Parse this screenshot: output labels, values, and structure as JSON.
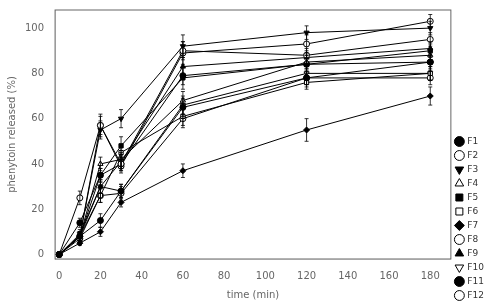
{
  "chart_data": {
    "type": "line",
    "xlabel": "time (min)",
    "ylabel": "phenytoin released (%)",
    "x": [
      0,
      10,
      20,
      30,
      60,
      120,
      180
    ],
    "xlim": [
      -2,
      190
    ],
    "ylim": [
      -2,
      108
    ],
    "xticks": [
      0,
      20,
      40,
      60,
      80,
      100,
      120,
      140,
      160,
      180
    ],
    "yticks": [
      0,
      20,
      40,
      60,
      80,
      100
    ],
    "grid": false,
    "legend": "lower right",
    "series": [
      {
        "name": "F1",
        "color": "black",
        "marker": "circle",
        "values": [
          0,
          8,
          15,
          28,
          65,
          78,
          85
        ],
        "yerr": [
          0,
          2,
          3,
          3,
          4,
          4,
          4
        ]
      },
      {
        "name": "F2",
        "color": "black",
        "marker": "open-circle",
        "values": [
          0,
          8,
          57,
          40,
          90,
          88,
          95
        ],
        "yerr": [
          0,
          2,
          5,
          3,
          4,
          3,
          3
        ]
      },
      {
        "name": "F3",
        "color": "black",
        "marker": "triangle-down",
        "values": [
          0,
          8,
          55,
          60,
          92,
          98,
          100
        ],
        "yerr": [
          0,
          2,
          4,
          4,
          5,
          3,
          3
        ]
      },
      {
        "name": "F4",
        "color": "black",
        "marker": "open-triangle-up",
        "values": [
          0,
          8,
          40,
          42,
          68,
          85,
          88
        ],
        "yerr": [
          0,
          2,
          3,
          3,
          4,
          3,
          3
        ]
      },
      {
        "name": "F5",
        "color": "black",
        "marker": "square",
        "values": [
          0,
          8,
          35,
          48,
          78,
          84,
          90
        ],
        "yerr": [
          0,
          2,
          3,
          4,
          5,
          4,
          3
        ]
      },
      {
        "name": "F6",
        "color": "black",
        "marker": "open-square",
        "values": [
          0,
          8,
          26,
          45,
          61,
          76,
          80
        ],
        "yerr": [
          0,
          2,
          3,
          3,
          4,
          3,
          3
        ]
      },
      {
        "name": "F7",
        "color": "black",
        "marker": "diamond",
        "values": [
          0,
          5,
          10,
          23,
          37,
          55,
          70
        ],
        "yerr": [
          0,
          1,
          2,
          2,
          3,
          5,
          4
        ]
      },
      {
        "name": "F8",
        "color": "black",
        "marker": "open-circle",
        "values": [
          0,
          7,
          26,
          27,
          60,
          78,
          78
        ],
        "yerr": [
          0,
          2,
          3,
          3,
          4,
          3,
          3
        ]
      },
      {
        "name": "F9",
        "color": "black",
        "marker": "triangle-up",
        "values": [
          0,
          8,
          30,
          41,
          83,
          87,
          91
        ],
        "yerr": [
          0,
          2,
          3,
          3,
          4,
          3,
          3
        ]
      },
      {
        "name": "F10",
        "color": "black",
        "marker": "open-triangle-down",
        "values": [
          0,
          9,
          30,
          28,
          66,
          80,
          80
        ],
        "yerr": [
          0,
          2,
          3,
          3,
          4,
          3,
          3
        ]
      },
      {
        "name": "F11",
        "color": "black",
        "marker": "circle",
        "values": [
          0,
          14,
          35,
          40,
          79,
          84,
          85
        ],
        "yerr": [
          0,
          2,
          3,
          3,
          4,
          3,
          3
        ]
      },
      {
        "name": "F12",
        "color": "black",
        "marker": "open-circle",
        "values": [
          0,
          25,
          57,
          39,
          89,
          93,
          103
        ],
        "yerr": [
          0,
          3,
          4,
          3,
          5,
          4,
          3
        ]
      }
    ]
  }
}
